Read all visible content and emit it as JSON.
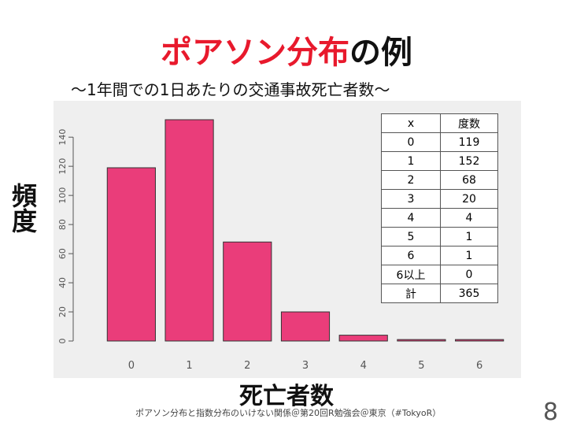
{
  "slide": {
    "title_red": "ポアソン分布",
    "title_black": "の例",
    "subtitle": "～1年間での1日あたりの交通事故死亡者数～",
    "footer": "ポアソン分布と指数分布のいけない関係＠第20回R勉強会＠東京（#TokyoR）",
    "page_number": "8"
  },
  "table": {
    "header": [
      "x",
      "度数"
    ],
    "rows": [
      [
        "0",
        "119"
      ],
      [
        "1",
        "152"
      ],
      [
        "2",
        "68"
      ],
      [
        "3",
        "20"
      ],
      [
        "4",
        "4"
      ],
      [
        "5",
        "1"
      ],
      [
        "6",
        "1"
      ],
      [
        "6以上",
        "0"
      ],
      [
        "計",
        "365"
      ]
    ]
  },
  "chart_data": {
    "type": "bar",
    "categories": [
      "0",
      "1",
      "2",
      "3",
      "4",
      "5",
      "6"
    ],
    "values": [
      119,
      152,
      68,
      20,
      4,
      1,
      1
    ],
    "yticks": [
      0,
      20,
      40,
      60,
      80,
      100,
      120,
      140
    ],
    "ylim": [
      0,
      152
    ],
    "xlabel": "死亡者数",
    "ylabel": "頻度",
    "bar_color": "#ea3d7a",
    "grid": false
  }
}
